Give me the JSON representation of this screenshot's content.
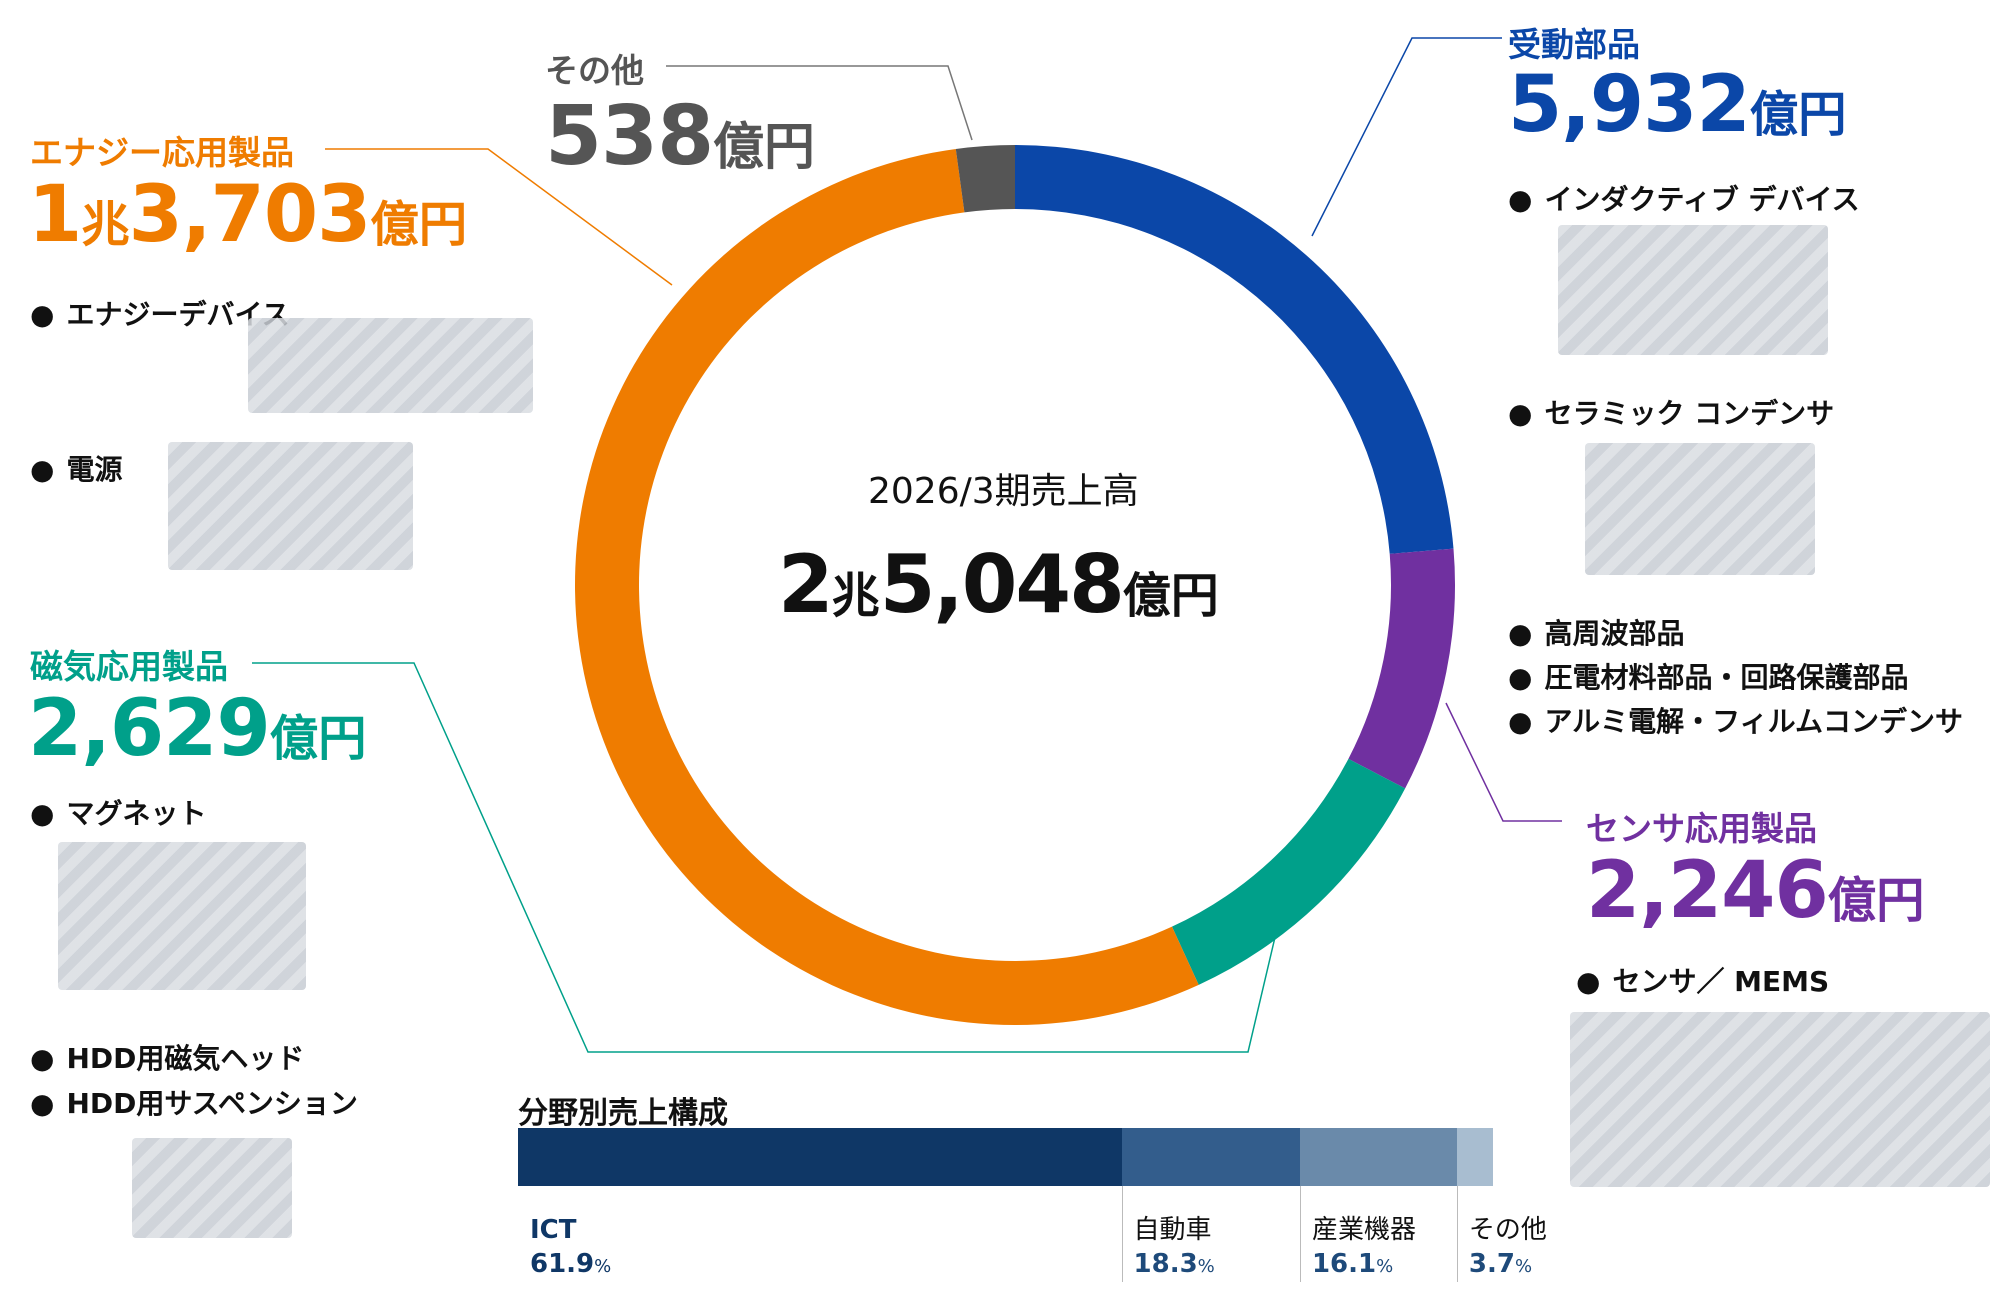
{
  "chart_data": [
    {
      "type": "pie",
      "style": "donut",
      "center_title": "2026/3期売上高",
      "center_total": {
        "prefix": "2",
        "cho": "兆",
        "number": "5,048",
        "unit": "億円"
      },
      "segments": [
        {
          "key": "passive",
          "label": "受動部品",
          "amount": "5,932",
          "cho": "",
          "unit": "億円",
          "value": 5932,
          "color": "#0b47a8",
          "items": [
            "インダクティブ デバイス",
            "セラミック コンデンサ",
            "高周波部品",
            "圧電材料部品・回路保護部品",
            "アルミ電解・フィルムコンデンサ"
          ]
        },
        {
          "key": "sensor",
          "label": "センサ応用製品",
          "amount": "2,246",
          "cho": "",
          "unit": "億円",
          "value": 2246,
          "color": "#7030a0",
          "items": [
            "センサ／ MEMS"
          ]
        },
        {
          "key": "magnetic",
          "label": "磁気応用製品",
          "amount": "2,629",
          "cho": "",
          "unit": "億円",
          "value": 2629,
          "color": "#00a08a",
          "items": [
            "マグネット",
            "HDD用磁気ヘッド",
            "HDD用サスペンション"
          ]
        },
        {
          "key": "energy",
          "label": "エナジー応用製品",
          "amount": "3,703",
          "cho": "兆",
          "prefix": "1",
          "unit": "億円",
          "value": 13703,
          "color": "#ef7c00",
          "items": [
            "エナジーデバイス",
            "電源"
          ]
        },
        {
          "key": "other",
          "label": "その他",
          "amount": "538",
          "cho": "",
          "unit": "億円",
          "value": 538,
          "color": "#555555",
          "items": []
        }
      ]
    },
    {
      "type": "bar",
      "orientation": "horizontal-stacked",
      "title": "分野別売上構成",
      "unit": "%",
      "categories": [
        "ICT",
        "自動車",
        "産業機器",
        "その他"
      ],
      "values": [
        61.9,
        18.3,
        16.1,
        3.7
      ],
      "colors": [
        "#0f3766",
        "#335d8c",
        "#6a8aaa",
        "#a8bdd0"
      ]
    }
  ]
}
